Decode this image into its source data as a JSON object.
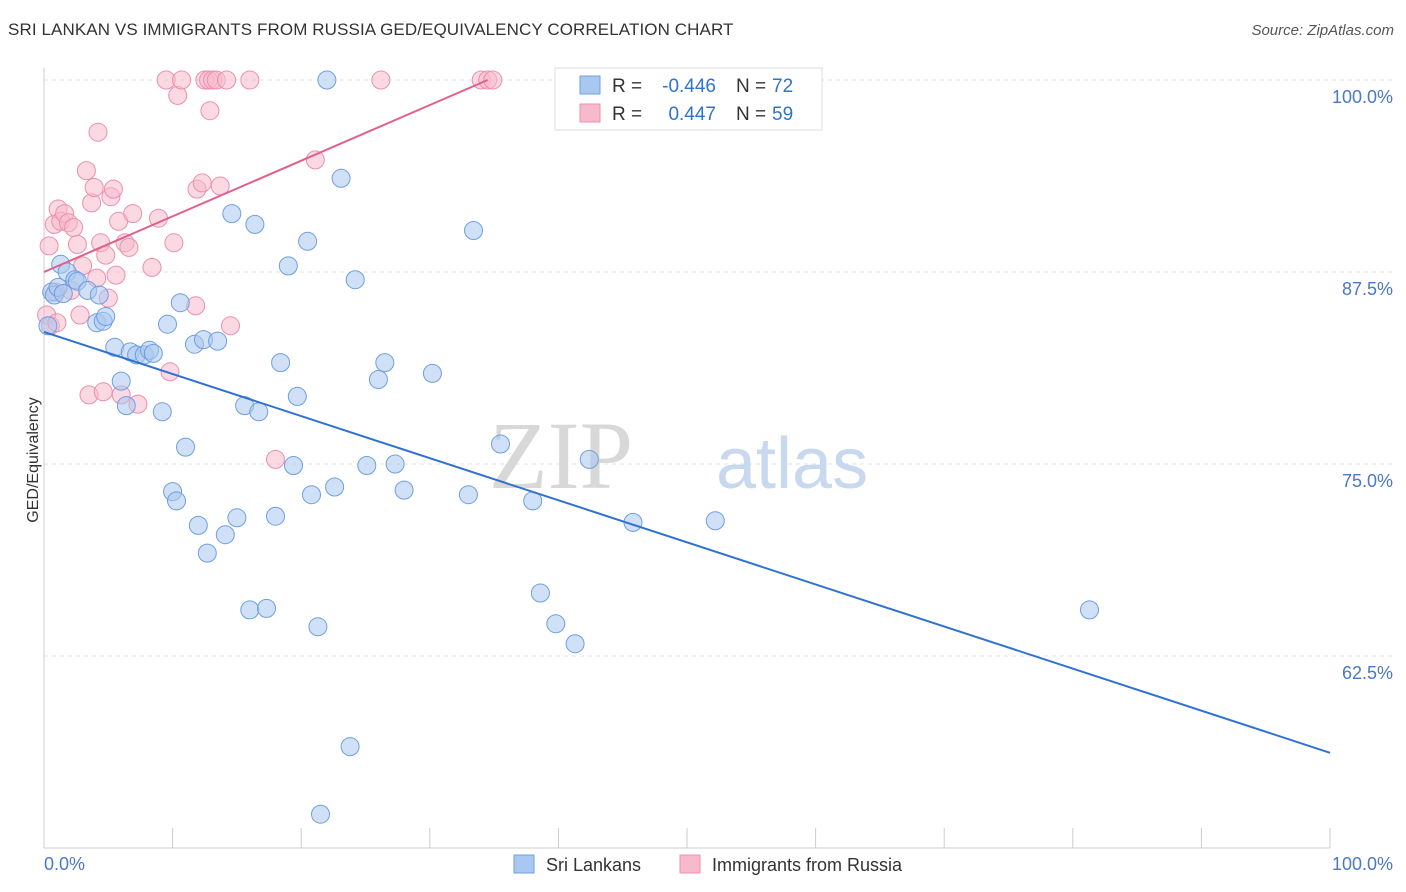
{
  "title": "SRI LANKAN VS IMMIGRANTS FROM RUSSIA GED/EQUIVALENCY CORRELATION CHART",
  "source": "Source: ZipAtlas.com",
  "watermark": {
    "zip": "ZIP",
    "atlas": "atlas"
  },
  "colors": {
    "blue_fill": "#a9c8f0",
    "blue_stroke": "#6f9fe0",
    "blue_line": "#2f72d0",
    "pink_fill": "#f7b9cc",
    "pink_stroke": "#ec8fae",
    "pink_line": "#e0608c",
    "axis_text": "#4a78c8",
    "grid": "#e3e3e3"
  },
  "legend": {
    "rows": [
      {
        "r_label": "R =",
        "r_value": "-0.446",
        "n_label": "N =",
        "n_value": "72"
      },
      {
        "r_label": "R =",
        "r_value": "0.447",
        "n_label": "N =",
        "n_value": "59"
      }
    ]
  },
  "chart_data": {
    "type": "scatter",
    "title": "SRI LANKAN VS IMMIGRANTS FROM RUSSIA GED/EQUIVALENCY CORRELATION CHART",
    "xlabel": "",
    "ylabel": "GED/Equivalency",
    "xlim": [
      0,
      100
    ],
    "ylim": [
      52.5,
      101.5
    ],
    "x_tick_labels": [
      "0.0%",
      "100.0%"
    ],
    "y_ticks": [
      62.5,
      75.0,
      87.5,
      100.0
    ],
    "y_tick_labels": [
      "62.5%",
      "75.0%",
      "87.5%",
      "100.0%"
    ],
    "grid": true,
    "legend_position": "top-center",
    "series": [
      {
        "name": "Sri Lankans",
        "color": "blue",
        "trend": {
          "x": [
            0,
            100
          ],
          "y": [
            83.6,
            56.2
          ]
        },
        "points": [
          [
            0.3,
            84.0
          ],
          [
            0.6,
            86.2
          ],
          [
            0.8,
            86.0
          ],
          [
            1.1,
            86.5
          ],
          [
            1.3,
            88.0
          ],
          [
            1.5,
            86.1
          ],
          [
            1.8,
            87.5
          ],
          [
            2.4,
            87.0
          ],
          [
            2.6,
            86.9
          ],
          [
            3.4,
            86.3
          ],
          [
            4.1,
            84.2
          ],
          [
            4.3,
            86.0
          ],
          [
            4.6,
            84.3
          ],
          [
            4.8,
            84.6
          ],
          [
            5.5,
            82.6
          ],
          [
            6.0,
            80.4
          ],
          [
            6.4,
            78.8
          ],
          [
            6.7,
            82.3
          ],
          [
            7.2,
            82.1
          ],
          [
            7.8,
            82.1
          ],
          [
            8.2,
            82.4
          ],
          [
            8.5,
            82.2
          ],
          [
            9.2,
            78.4
          ],
          [
            9.6,
            84.1
          ],
          [
            10.0,
            73.2
          ],
          [
            10.3,
            72.6
          ],
          [
            10.6,
            85.5
          ],
          [
            11.0,
            76.1
          ],
          [
            11.7,
            82.8
          ],
          [
            12.0,
            71.0
          ],
          [
            12.4,
            83.1
          ],
          [
            12.7,
            69.2
          ],
          [
            13.5,
            83.0
          ],
          [
            14.1,
            70.4
          ],
          [
            14.6,
            91.3
          ],
          [
            15.0,
            71.5
          ],
          [
            15.6,
            78.8
          ],
          [
            16.0,
            65.5
          ],
          [
            16.4,
            90.6
          ],
          [
            16.7,
            78.4
          ],
          [
            17.3,
            65.6
          ],
          [
            18.0,
            71.6
          ],
          [
            18.4,
            81.6
          ],
          [
            19.0,
            87.9
          ],
          [
            19.4,
            74.9
          ],
          [
            19.7,
            79.4
          ],
          [
            20.5,
            89.5
          ],
          [
            20.8,
            73.0
          ],
          [
            21.3,
            64.4
          ],
          [
            21.5,
            52.2
          ],
          [
            22.0,
            100.0
          ],
          [
            22.6,
            73.5
          ],
          [
            23.1,
            93.6
          ],
          [
            23.8,
            56.6
          ],
          [
            24.2,
            87.0
          ],
          [
            25.1,
            74.9
          ],
          [
            26.0,
            80.5
          ],
          [
            26.5,
            81.6
          ],
          [
            27.3,
            75.0
          ],
          [
            28.0,
            73.3
          ],
          [
            30.2,
            80.9
          ],
          [
            33.0,
            73.0
          ],
          [
            33.4,
            90.2
          ],
          [
            35.5,
            76.3
          ],
          [
            38.0,
            72.6
          ],
          [
            38.6,
            66.6
          ],
          [
            39.8,
            64.6
          ],
          [
            41.3,
            63.3
          ],
          [
            42.4,
            75.3
          ],
          [
            45.8,
            71.2
          ],
          [
            52.2,
            71.3
          ],
          [
            81.3,
            65.5
          ]
        ]
      },
      {
        "name": "Immigrants from Russia",
        "color": "pink",
        "trend": {
          "x": [
            0,
            34.5
          ],
          "y": [
            87.5,
            100.0
          ]
        },
        "points": [
          [
            0.2,
            84.7
          ],
          [
            0.4,
            89.2
          ],
          [
            0.5,
            84.0
          ],
          [
            0.8,
            90.6
          ],
          [
            1.1,
            91.6
          ],
          [
            1.3,
            90.8
          ],
          [
            1.6,
            91.3
          ],
          [
            1.9,
            90.7
          ],
          [
            2.1,
            86.3
          ],
          [
            2.3,
            90.4
          ],
          [
            2.6,
            89.3
          ],
          [
            2.8,
            84.7
          ],
          [
            3.0,
            87.9
          ],
          [
            3.3,
            94.1
          ],
          [
            3.5,
            79.5
          ],
          [
            3.7,
            92.0
          ],
          [
            3.9,
            93.0
          ],
          [
            4.1,
            87.1
          ],
          [
            4.2,
            96.6
          ],
          [
            4.4,
            89.4
          ],
          [
            4.6,
            79.7
          ],
          [
            4.8,
            88.6
          ],
          [
            5.0,
            85.8
          ],
          [
            5.2,
            92.4
          ],
          [
            5.4,
            92.9
          ],
          [
            5.6,
            87.3
          ],
          [
            5.8,
            90.8
          ],
          [
            6.0,
            79.5
          ],
          [
            6.3,
            89.4
          ],
          [
            6.6,
            89.1
          ],
          [
            6.9,
            91.3
          ],
          [
            7.3,
            78.9
          ],
          [
            8.4,
            87.8
          ],
          [
            8.9,
            91.0
          ],
          [
            9.5,
            100.0
          ],
          [
            9.8,
            81.0
          ],
          [
            10.1,
            89.4
          ],
          [
            10.4,
            99.0
          ],
          [
            10.7,
            100.0
          ],
          [
            11.8,
            85.3
          ],
          [
            11.9,
            92.9
          ],
          [
            12.3,
            93.3
          ],
          [
            12.5,
            100.0
          ],
          [
            12.8,
            100.0
          ],
          [
            12.9,
            98.0
          ],
          [
            13.1,
            100.0
          ],
          [
            13.4,
            100.0
          ],
          [
            13.7,
            93.1
          ],
          [
            14.2,
            100.0
          ],
          [
            14.5,
            84.0
          ],
          [
            16.0,
            100.0
          ],
          [
            18.0,
            75.3
          ],
          [
            21.1,
            94.8
          ],
          [
            26.2,
            100.0
          ],
          [
            34.0,
            100.0
          ],
          [
            34.5,
            100.0
          ],
          [
            34.9,
            100.0
          ],
          [
            1.0,
            84.2
          ],
          [
            0.9,
            86.2
          ]
        ]
      }
    ]
  }
}
